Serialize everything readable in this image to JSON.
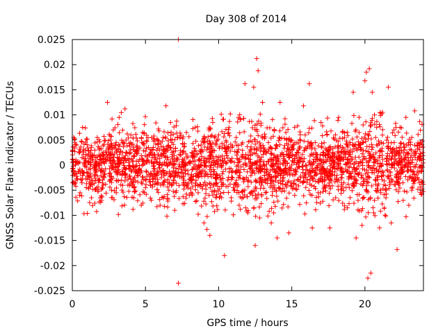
{
  "chart_data": {
    "type": "scatter",
    "title": "Day 308 of 2014",
    "xlabel": "GPS time / hours",
    "ylabel": "GNSS Solar Flare indicator / TECUs",
    "xlim": [
      0,
      24
    ],
    "ylim": [
      -0.025,
      0.025
    ],
    "xticks": [
      0,
      5,
      10,
      15,
      20
    ],
    "xtick_labels": [
      "0",
      "5",
      "10",
      "15",
      "20"
    ],
    "yticks": [
      -0.025,
      -0.02,
      -0.015,
      -0.01,
      -0.005,
      0,
      0.005,
      0.01,
      0.015,
      0.02,
      0.025
    ],
    "ytick_labels": [
      "-0.025",
      "-0.02",
      "-0.015",
      "-0.01",
      "-0.005",
      "0",
      "0.005",
      "0.01",
      "0.015",
      "0.02",
      "0.025"
    ],
    "grid": false,
    "legend": "none",
    "marker": "plus",
    "color": "#ff0000",
    "series": [
      {
        "values": [
          [
            0.1,
            0.0055
          ],
          [
            0.2,
            -0.0035
          ],
          [
            0.3,
            0.004
          ],
          [
            0.5,
            -0.006
          ],
          [
            0.7,
            0.0075
          ],
          [
            0.9,
            0.001
          ],
          [
            1.1,
            -0.0045
          ],
          [
            1.3,
            0.0035
          ],
          [
            1.5,
            -0.002
          ],
          [
            1.7,
            0.0055
          ],
          [
            1.9,
            -0.0065
          ],
          [
            2.1,
            0.0025
          ],
          [
            2.4,
            0.0125
          ],
          [
            2.6,
            -0.003
          ],
          [
            2.8,
            0.007
          ],
          [
            3.0,
            -0.0055
          ],
          [
            3.2,
            0.0095
          ],
          [
            3.4,
            0.0015
          ],
          [
            3.6,
            0.0112
          ],
          [
            3.8,
            -0.004
          ],
          [
            4.0,
            0.006
          ],
          [
            4.2,
            -0.0065
          ],
          [
            4.4,
            0.003
          ],
          [
            4.6,
            -0.0015
          ],
          [
            4.8,
            0.0065
          ],
          [
            5.0,
            -0.0045
          ],
          [
            5.2,
            0.0035
          ],
          [
            5.4,
            -0.007
          ],
          [
            5.6,
            0.005
          ],
          [
            5.8,
            0.0005
          ],
          [
            6.0,
            -0.008
          ],
          [
            6.2,
            0.0055
          ],
          [
            6.4,
            0.0118
          ],
          [
            6.6,
            -0.005
          ],
          [
            6.8,
            0.0045
          ],
          [
            7.0,
            -0.009
          ],
          [
            7.25,
            0.025
          ],
          [
            7.25,
            -0.0235
          ],
          [
            7.4,
            0.002
          ],
          [
            7.6,
            -0.0035
          ],
          [
            7.8,
            0.0065
          ],
          [
            8.0,
            -0.006
          ],
          [
            8.2,
            0.0025
          ],
          [
            8.4,
            0.0075
          ],
          [
            8.6,
            -0.0055
          ],
          [
            8.8,
            0.004
          ],
          [
            9.0,
            -0.0115
          ],
          [
            9.2,
            -0.0128
          ],
          [
            9.4,
            -0.014
          ],
          [
            9.6,
            0.0085
          ],
          [
            9.8,
            -0.002
          ],
          [
            10.0,
            0.006
          ],
          [
            10.2,
            -0.0065
          ],
          [
            10.4,
            -0.018
          ],
          [
            10.6,
            0.0035
          ],
          [
            10.8,
            0.0102
          ],
          [
            11.0,
            -0.0045
          ],
          [
            11.2,
            0.0055
          ],
          [
            11.4,
            -0.008
          ],
          [
            11.6,
            0.0015
          ],
          [
            11.8,
            0.0162
          ],
          [
            12.0,
            -0.0095
          ],
          [
            12.2,
            0.0058
          ],
          [
            12.4,
            0.0155
          ],
          [
            12.5,
            -0.016
          ],
          [
            12.6,
            0.0212
          ],
          [
            12.7,
            0.0188
          ],
          [
            12.8,
            -0.0105
          ],
          [
            13.0,
            0.0125
          ],
          [
            13.2,
            -0.0055
          ],
          [
            13.4,
            0.0045
          ],
          [
            13.6,
            -0.0115
          ],
          [
            13.8,
            0.007
          ],
          [
            14.0,
            -0.0145
          ],
          [
            14.2,
            0.0125
          ],
          [
            14.4,
            -0.003
          ],
          [
            14.6,
            0.0065
          ],
          [
            14.8,
            -0.0135
          ],
          [
            15.0,
            0.0035
          ],
          [
            15.2,
            -0.006
          ],
          [
            15.4,
            0.0078
          ],
          [
            15.6,
            -0.0025
          ],
          [
            15.8,
            0.0118
          ],
          [
            16.0,
            -0.0075
          ],
          [
            16.2,
            0.0162
          ],
          [
            16.4,
            -0.0125
          ],
          [
            16.6,
            0.0045
          ],
          [
            16.8,
            -0.0055
          ],
          [
            17.0,
            0.0085
          ],
          [
            17.2,
            -0.0015
          ],
          [
            17.4,
            0.006
          ],
          [
            17.6,
            -0.0125
          ],
          [
            17.8,
            0.0025
          ],
          [
            18.0,
            -0.0065
          ],
          [
            18.2,
            0.0095
          ],
          [
            18.4,
            -0.0035
          ],
          [
            18.6,
            0.0055
          ],
          [
            18.8,
            -0.0085
          ],
          [
            19.0,
            0.003
          ],
          [
            19.2,
            0.0145
          ],
          [
            19.4,
            -0.0145
          ],
          [
            19.6,
            0.0065
          ],
          [
            19.8,
            -0.012
          ],
          [
            20.0,
            0.0168
          ],
          [
            20.1,
            0.0185
          ],
          [
            20.2,
            -0.0225
          ],
          [
            20.3,
            0.0192
          ],
          [
            20.4,
            -0.0215
          ],
          [
            20.5,
            0.0145
          ],
          [
            20.6,
            -0.0095
          ],
          [
            20.8,
            0.0075
          ],
          [
            21.0,
            -0.0125
          ],
          [
            21.2,
            0.0105
          ],
          [
            21.4,
            -0.005
          ],
          [
            21.6,
            0.0155
          ],
          [
            21.8,
            -0.0115
          ],
          [
            22.0,
            0.0045
          ],
          [
            22.2,
            -0.0168
          ],
          [
            22.4,
            0.0075
          ],
          [
            22.6,
            -0.0035
          ],
          [
            22.8,
            0.0095
          ],
          [
            23.0,
            -0.008
          ],
          [
            23.2,
            0.0055
          ],
          [
            23.4,
            0.0108
          ],
          [
            23.6,
            -0.0025
          ],
          [
            23.8,
            0.0045
          ]
        ]
      }
    ]
  }
}
